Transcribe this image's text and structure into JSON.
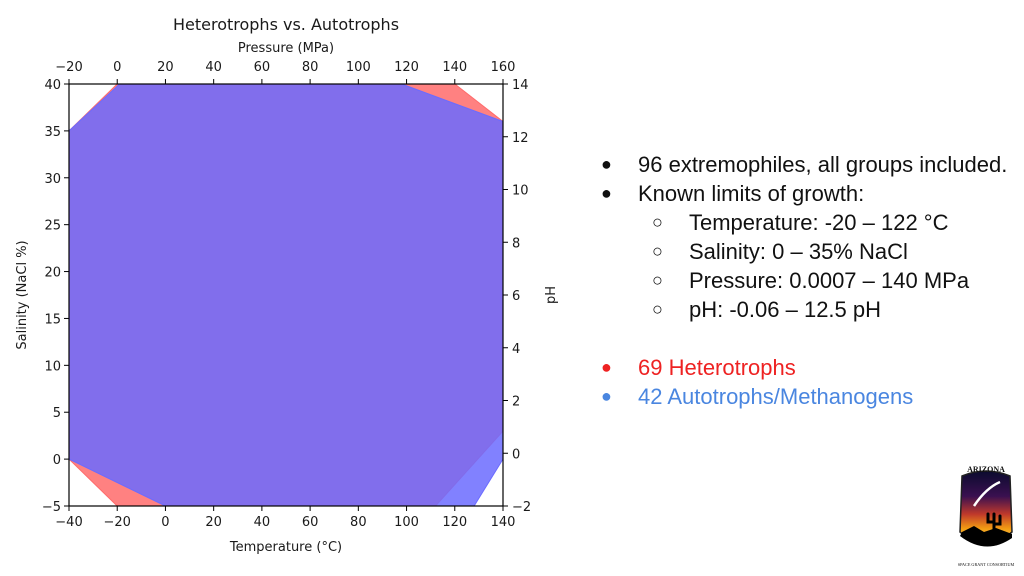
{
  "chart_data": {
    "type": "area",
    "title": "Heterotrophs vs. Autotrophs",
    "xlabel": "Temperature (°C)",
    "ylabel": "Salinity (NaCl %)",
    "x2label": "Pressure (MPa)",
    "y2label": "pH",
    "xlim": [
      -40,
      140
    ],
    "ylim": [
      -5,
      40
    ],
    "x2lim": [
      -20,
      160
    ],
    "y2lim": [
      -2,
      14
    ],
    "xticks": [
      -40,
      -20,
      0,
      20,
      40,
      60,
      80,
      100,
      120,
      140
    ],
    "yticks": [
      -5,
      0,
      5,
      10,
      15,
      20,
      25,
      30,
      35,
      40
    ],
    "x2ticks": [
      -20,
      0,
      20,
      40,
      60,
      80,
      100,
      120,
      140,
      160
    ],
    "y2ticks": [
      -2,
      0,
      2,
      4,
      6,
      8,
      10,
      12,
      14
    ],
    "series": [
      {
        "name": "69 Heterotrophs",
        "color": "#ff6b6b",
        "polygon": [
          [
            -40,
            35
          ],
          [
            -20,
            40
          ],
          [
            120,
            40
          ],
          [
            140,
            36
          ],
          [
            140,
            3
          ],
          [
            112,
            -5
          ],
          [
            -20,
            -5
          ],
          [
            -40,
            0
          ]
        ]
      },
      {
        "name": "42 Autotrophs/Methanogens",
        "color": "#6b6bff",
        "polygon": [
          [
            -40,
            35
          ],
          [
            -19,
            40
          ],
          [
            98,
            40
          ],
          [
            140,
            36
          ],
          [
            140,
            0
          ],
          [
            128,
            -5
          ],
          [
            0,
            -5
          ],
          [
            -40,
            0
          ]
        ]
      }
    ]
  },
  "bullets": {
    "summary": "96 extremophiles, all groups included.",
    "limits_title": "Known limits of growth:",
    "temperature": "Temperature: -20 – 122 °C",
    "salinity": "Salinity: 0 – 35% NaCl",
    "pressure": "Pressure: 0.0007 – 140 MPa",
    "ph": "pH: -0.06 – 12.5 pH",
    "heterotrophs": "69 Heterotrophs",
    "autotrophs": "42 Autotrophs/Methanogens",
    "heterotrophs_color": "#ee2222",
    "autotrophs_color": "#4a86e0"
  },
  "logo": {
    "top_text": "ARIZONA",
    "bottom_text": "SPACE GRANT CONSORTIUM"
  }
}
